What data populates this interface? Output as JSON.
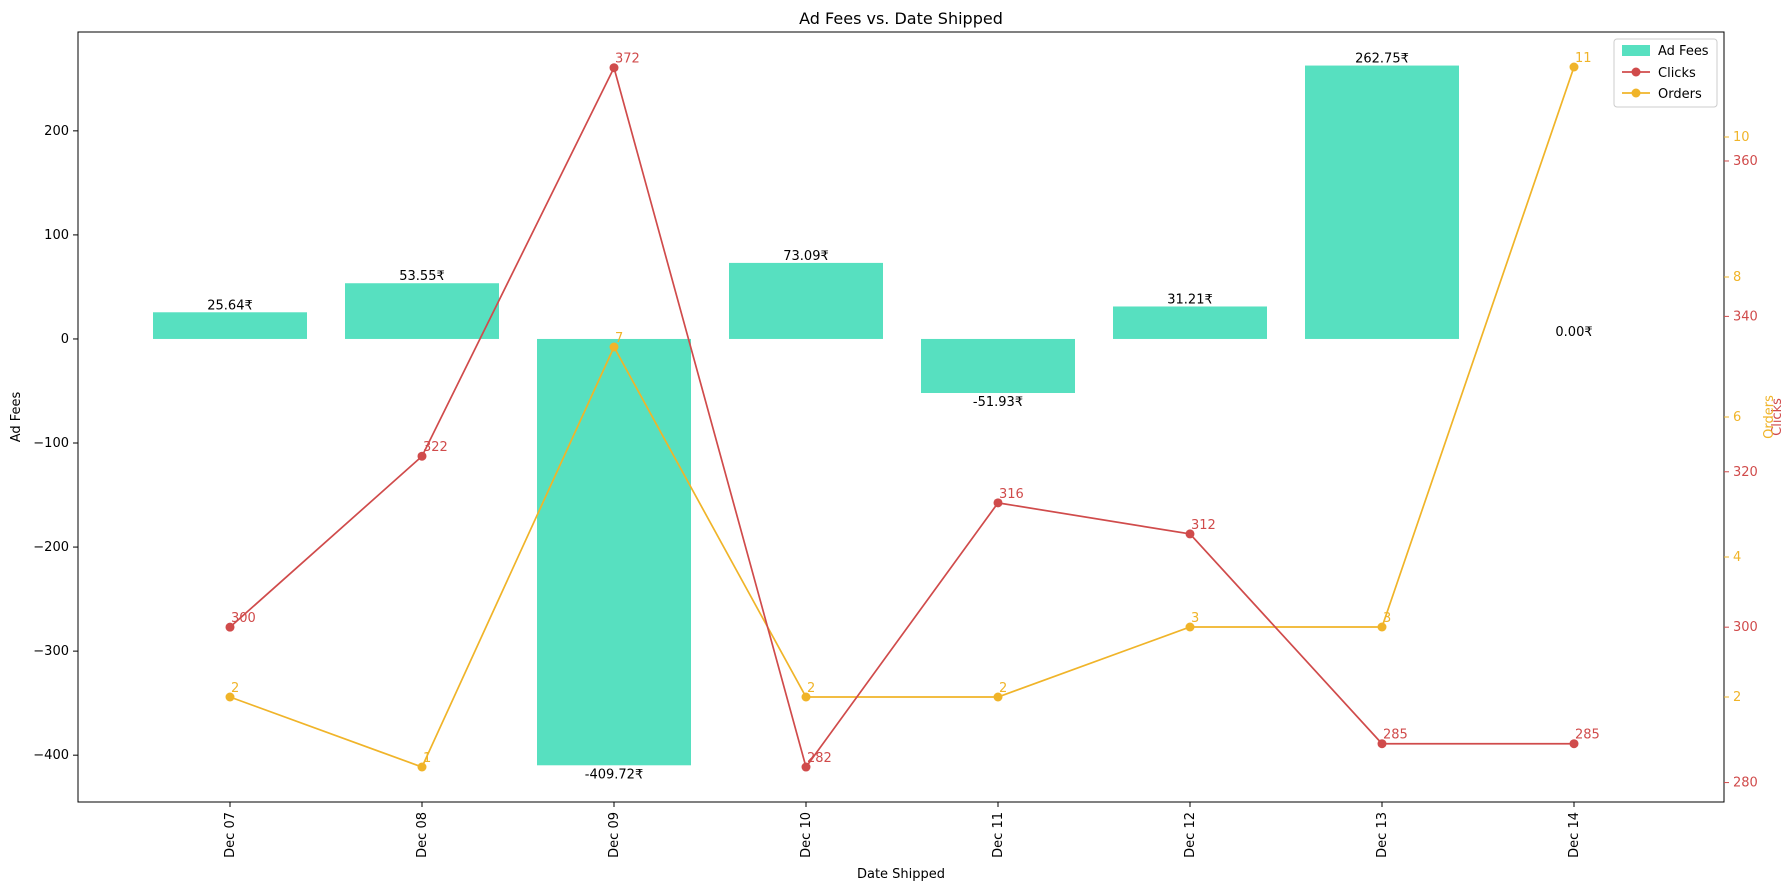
{
  "chart_data": {
    "type": "bar",
    "title": "Ad Fees vs. Date Shipped",
    "xlabel": "Date Shipped",
    "ylabel": "Ad Fees",
    "categories": [
      "Dec 07",
      "Dec 08",
      "Dec 09",
      "Dec 10",
      "Dec 11",
      "Dec 12",
      "Dec 13",
      "Dec 14"
    ],
    "left_axis": {
      "range": [
        -445,
        295
      ],
      "ticks": [
        -400,
        -300,
        -200,
        -100,
        0,
        100,
        200
      ]
    },
    "series": [
      {
        "name": "Ad Fees",
        "type": "bar",
        "axis": "left",
        "color": "#57e0c0",
        "values": [
          25.64,
          53.55,
          -409.72,
          73.09,
          -51.93,
          31.21,
          262.75,
          0
        ],
        "labels": [
          "25.64₹",
          "53.55₹",
          "-409.72₹",
          "73.09₹",
          "-51.93₹",
          "31.21₹",
          "262.75₹",
          "0.00₹"
        ]
      },
      {
        "name": "Clicks",
        "type": "line",
        "axis": "right_outer",
        "axis_label": "Clicks",
        "color": "#d04b4b",
        "range": [
          277.5,
          376.6
        ],
        "ticks": [
          280,
          300,
          320,
          340,
          360
        ],
        "values": [
          300,
          322,
          372,
          282,
          316,
          312,
          285,
          285
        ]
      },
      {
        "name": "Orders",
        "type": "line",
        "axis": "right_inner",
        "axis_label": "Orders",
        "color": "#f0b429",
        "range": [
          0.5,
          11.5
        ],
        "ticks": [
          2,
          4,
          6,
          8,
          10
        ],
        "values": [
          2,
          1,
          7,
          2,
          2,
          3,
          3,
          11
        ]
      }
    ],
    "legend": {
      "position": "top-right",
      "entries": [
        "Ad Fees",
        "Clicks",
        "Orders"
      ]
    },
    "grid": false
  }
}
